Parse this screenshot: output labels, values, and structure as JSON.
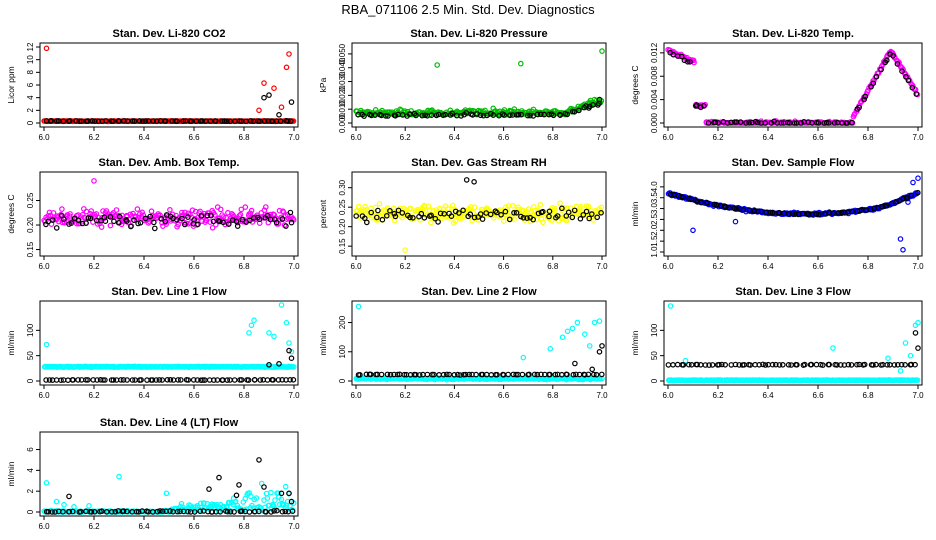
{
  "figure": {
    "title": "RBA_071106  2.5 Min. Std. Dev. Diagnostics"
  },
  "chart_data": [
    {
      "type": "scatter",
      "title": "Stan. Dev. Li-820 CO2",
      "xlabel": "",
      "ylabel": "Licor ppm",
      "xlim": [
        6.0,
        7.0
      ],
      "ylim": [
        0,
        12
      ],
      "xticks": [
        6.0,
        6.2,
        6.4,
        6.6,
        6.8,
        7.0
      ],
      "yticks": [
        0,
        2,
        4,
        6,
        8,
        10,
        12
      ],
      "series": [
        {
          "name": "series_1",
          "color": "#ff0000",
          "baseline": 0.3,
          "noise": 0.05,
          "outliers": [
            [
              6.01,
              11.8
            ],
            [
              6.86,
              2.0
            ],
            [
              6.88,
              6.3
            ],
            [
              6.92,
              5.5
            ],
            [
              6.95,
              2.5
            ],
            [
              6.98,
              10.9
            ],
            [
              6.97,
              8.8
            ]
          ]
        },
        {
          "name": "series_2",
          "color": "#000000",
          "baseline": 0.3,
          "noise": 0.05,
          "outliers": [
            [
              6.88,
              4.0
            ],
            [
              6.9,
              4.4
            ],
            [
              6.94,
              1.3
            ],
            [
              6.99,
              3.3
            ]
          ]
        }
      ]
    },
    {
      "type": "scatter",
      "title": "Stan. Dev. Li-820 Pressure",
      "xlabel": "",
      "ylabel": "kPa",
      "xlim": [
        6.0,
        7.0
      ],
      "ylim": [
        0,
        0.055
      ],
      "xticks": [
        6.0,
        6.2,
        6.4,
        6.6,
        6.8,
        7.0
      ],
      "yticks": [
        0.0,
        0.01,
        0.02,
        0.03,
        0.04,
        0.05
      ],
      "ytick_labels": [
        "0.000",
        "0.010",
        "0.020",
        "0.030",
        "0.040",
        "0.050"
      ],
      "series": [
        {
          "name": "series_1",
          "color": "#00bb00",
          "baseline": 0.006,
          "noise": 0.005,
          "outliers": [
            [
              6.33,
              0.042
            ],
            [
              6.67,
              0.043
            ],
            [
              7.0,
              0.052
            ],
            [
              6.97,
              0.017
            ],
            [
              6.95,
              0.015
            ]
          ]
        },
        {
          "name": "series_2",
          "color": "#000000",
          "baseline": 0.005,
          "noise": 0.003,
          "outliers": [
            [
              6.99,
              0.017
            ],
            [
              6.95,
              0.012
            ]
          ]
        }
      ]
    },
    {
      "type": "scatter",
      "title": "Stan. Dev. Li-820 Temp.",
      "xlabel": "",
      "ylabel": "degrees C",
      "xlim": [
        6.0,
        7.0
      ],
      "ylim": [
        0,
        0.013
      ],
      "xticks": [
        6.0,
        6.2,
        6.4,
        6.6,
        6.8,
        7.0
      ],
      "yticks": [
        0.0,
        0.004,
        0.008,
        0.012
      ],
      "ytick_labels": [
        "0.000",
        "0.004",
        "0.008",
        "0.012"
      ],
      "series": [
        {
          "name": "series_1",
          "color": "#ff00ff",
          "baseline": 0.0,
          "noise": 0.0,
          "outliers": []
        },
        {
          "name": "series_2",
          "color": "#000000",
          "baseline": 0.0,
          "noise": 0.0,
          "outliers": []
        }
      ]
    },
    {
      "type": "scatter",
      "title": "Stan. Dev. Amb. Box Temp.",
      "xlabel": "",
      "ylabel": "degrees C",
      "xlim": [
        6.0,
        7.0
      ],
      "ylim": [
        0.145,
        0.3
      ],
      "xticks": [
        6.0,
        6.2,
        6.4,
        6.6,
        6.8,
        7.0
      ],
      "yticks": [
        0.15,
        0.2,
        0.25
      ],
      "ytick_labels": [
        "0.15",
        "0.20",
        "0.25"
      ],
      "series": [
        {
          "name": "series_1",
          "color": "#ff00ff",
          "baseline": 0.215,
          "noise": 0.025,
          "outliers": [
            [
              6.2,
              0.29
            ]
          ]
        },
        {
          "name": "series_2",
          "color": "#000000",
          "baseline": 0.21,
          "noise": 0.02,
          "outliers": []
        }
      ]
    },
    {
      "type": "scatter",
      "title": "Stan. Dev. Gas Stream RH",
      "xlabel": "",
      "ylabel": "percent",
      "xlim": [
        6.0,
        7.0
      ],
      "ylim": [
        0.135,
        0.33
      ],
      "xticks": [
        6.0,
        6.2,
        6.4,
        6.6,
        6.8,
        7.0
      ],
      "yticks": [
        0.15,
        0.2,
        0.25,
        0.3
      ],
      "ytick_labels": [
        "0.15",
        "0.20",
        "0.25",
        "0.30"
      ],
      "series": [
        {
          "name": "series_1",
          "color": "#ffff00",
          "baseline": 0.235,
          "noise": 0.03,
          "outliers": [
            [
              6.2,
              0.14
            ]
          ]
        },
        {
          "name": "series_2",
          "color": "#000000",
          "baseline": 0.23,
          "noise": 0.025,
          "outliers": [
            [
              6.45,
              0.32
            ],
            [
              6.48,
              0.315
            ]
          ]
        }
      ]
    },
    {
      "type": "scatter",
      "title": "Stan. Dev. Sample Flow",
      "xlabel": "",
      "ylabel": "ml/min",
      "xlim": [
        6.0,
        7.0
      ],
      "ylim": [
        1.0,
        4.5
      ],
      "xticks": [
        6.0,
        6.2,
        6.4,
        6.6,
        6.8,
        7.0
      ],
      "yticks": [
        1.0,
        1.5,
        2.0,
        2.5,
        3.0,
        3.5,
        4.0
      ],
      "ytick_labels": [
        "1.0",
        "1.5",
        "2.0",
        "2.5",
        "3.0",
        "3.5",
        "4.0"
      ],
      "series": [
        {
          "name": "series_1",
          "color": "#0000ff",
          "baseline": 3.0,
          "noise": 0.08,
          "outliers": [
            [
              6.1,
              2.0
            ],
            [
              6.27,
              2.4
            ],
            [
              6.93,
              1.6
            ],
            [
              6.94,
              1.1
            ],
            [
              7.0,
              4.4
            ],
            [
              6.98,
              4.2
            ],
            [
              6.96,
              3.3
            ]
          ]
        },
        {
          "name": "series_2",
          "color": "#000000",
          "baseline": 3.0,
          "noise": 0.05,
          "outliers": []
        }
      ]
    },
    {
      "type": "scatter",
      "title": "Stan. Dev. Line 1 Flow",
      "xlabel": "",
      "ylabel": "ml/min",
      "xlim": [
        6.0,
        7.0
      ],
      "ylim": [
        0,
        150
      ],
      "xticks": [
        6.0,
        6.2,
        6.4,
        6.6,
        6.8,
        7.0
      ],
      "yticks": [
        0,
        50,
        100
      ],
      "series": [
        {
          "name": "series_1",
          "color": "#00ffff",
          "baseline": 28,
          "noise": 1.2,
          "outliers": [
            [
              6.01,
              72
            ],
            [
              6.82,
              95
            ],
            [
              6.84,
              120
            ],
            [
              6.83,
              110
            ],
            [
              6.9,
              95
            ],
            [
              6.92,
              88
            ],
            [
              6.95,
              150
            ],
            [
              6.97,
              115
            ],
            [
              6.99,
              58
            ],
            [
              6.98,
              75
            ]
          ]
        },
        {
          "name": "series_2",
          "color": "#000000",
          "baseline": 2,
          "noise": 0.6,
          "outliers": [
            [
              6.98,
              60
            ],
            [
              6.99,
              45
            ],
            [
              6.9,
              32
            ],
            [
              6.94,
              34
            ]
          ]
        }
      ]
    },
    {
      "type": "scatter",
      "title": "Stan. Dev. Line 2 Flow",
      "xlabel": "",
      "ylabel": "ml/min",
      "xlim": [
        6.0,
        7.0
      ],
      "ylim": [
        0,
        260
      ],
      "xticks": [
        6.0,
        6.2,
        6.4,
        6.6,
        6.8,
        7.0
      ],
      "yticks": [
        0,
        100,
        200
      ],
      "series": [
        {
          "name": "series_1",
          "color": "#00ffff",
          "baseline": 8,
          "noise": 4,
          "outliers": [
            [
              6.01,
              255
            ],
            [
              6.68,
              80
            ],
            [
              6.79,
              110
            ],
            [
              6.84,
              150
            ],
            [
              6.88,
              180
            ],
            [
              6.9,
              200
            ],
            [
              6.86,
              170
            ],
            [
              6.93,
              160
            ],
            [
              6.97,
              200
            ],
            [
              6.99,
              205
            ],
            [
              6.95,
              120
            ]
          ]
        },
        {
          "name": "series_2",
          "color": "#000000",
          "baseline": 22,
          "noise": 1.5,
          "outliers": [
            [
              6.89,
              60
            ],
            [
              6.99,
              100
            ],
            [
              7.0,
              120
            ],
            [
              6.96,
              40
            ]
          ]
        }
      ]
    },
    {
      "type": "scatter",
      "title": "Stan. Dev. Line 3 Flow",
      "xlabel": "",
      "ylabel": "ml/min",
      "xlim": [
        6.0,
        7.0
      ],
      "ylim": [
        0,
        150
      ],
      "xticks": [
        6.0,
        6.2,
        6.4,
        6.6,
        6.8,
        7.0
      ],
      "yticks": [
        0,
        50,
        100
      ],
      "series": [
        {
          "name": "series_1",
          "color": "#00ffff",
          "baseline": 1.5,
          "noise": 0.8,
          "outliers": [
            [
              6.01,
              148
            ],
            [
              6.07,
              40
            ],
            [
              6.66,
              65
            ],
            [
              6.88,
              45
            ],
            [
              6.95,
              75
            ],
            [
              6.99,
              110
            ],
            [
              7.0,
              115
            ],
            [
              6.97,
              50
            ],
            [
              6.93,
              20
            ]
          ]
        },
        {
          "name": "series_2",
          "color": "#000000",
          "baseline": 32,
          "noise": 1.0,
          "outliers": [
            [
              6.99,
              95
            ],
            [
              7.0,
              65
            ]
          ]
        }
      ]
    },
    {
      "type": "scatter",
      "title": "Stan. Dev. Line 4 (LT) Flow",
      "xlabel": "",
      "ylabel": "ml/min",
      "xlim": [
        6.0,
        7.0
      ],
      "ylim": [
        0,
        7.3
      ],
      "xticks": [
        6.0,
        6.2,
        6.4,
        6.6,
        6.8,
        7.0
      ],
      "yticks": [
        0,
        2,
        4,
        6
      ],
      "series": [
        {
          "name": "series_1",
          "color": "#00ffff",
          "baseline": 0.0,
          "noise": 0.0,
          "outliers": [
            [
              6.01,
              2.8
            ],
            [
              6.05,
              1.0
            ],
            [
              6.08,
              0.7
            ],
            [
              6.12,
              0.5
            ],
            [
              6.18,
              0.6
            ],
            [
              6.3,
              3.4
            ],
            [
              6.49,
              1.8
            ],
            [
              6.55,
              0.8
            ]
          ]
        },
        {
          "name": "series_2",
          "color": "#000000",
          "baseline": 0.0,
          "noise": 0.0,
          "outliers": [
            [
              6.1,
              1.5
            ],
            [
              6.66,
              2.2
            ],
            [
              6.7,
              3.3
            ],
            [
              6.77,
              1.6
            ],
            [
              6.78,
              2.6
            ],
            [
              6.86,
              5.0
            ],
            [
              6.88,
              2.4
            ],
            [
              6.95,
              1.8
            ],
            [
              6.98,
              1.8
            ],
            [
              6.99,
              1.0
            ]
          ]
        }
      ]
    }
  ]
}
